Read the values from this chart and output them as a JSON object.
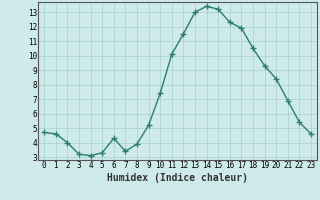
{
  "x": [
    0,
    1,
    2,
    3,
    4,
    5,
    6,
    7,
    8,
    9,
    10,
    11,
    12,
    13,
    14,
    15,
    16,
    17,
    18,
    19,
    20,
    21,
    22,
    23
  ],
  "y": [
    4.7,
    4.6,
    4.0,
    3.2,
    3.1,
    3.3,
    4.3,
    3.4,
    3.9,
    5.2,
    7.4,
    10.1,
    11.5,
    13.0,
    13.4,
    13.2,
    12.3,
    11.9,
    10.5,
    9.3,
    8.4,
    6.9,
    5.4,
    4.6
  ],
  "line_color": "#2d7d6e",
  "marker": "+",
  "markersize": 4,
  "linewidth": 1.0,
  "xlabel": "Humidex (Indice chaleur)",
  "xlabel_fontsize": 7,
  "bg_color": "#ceeaea",
  "grid_color": "#a8cece",
  "tick_color": "#333333",
  "xlim": [
    -0.5,
    23.5
  ],
  "ylim": [
    2.8,
    13.7
  ],
  "yticks": [
    3,
    4,
    5,
    6,
    7,
    8,
    9,
    10,
    11,
    12,
    13
  ],
  "xticks": [
    0,
    1,
    2,
    3,
    4,
    5,
    6,
    7,
    8,
    9,
    10,
    11,
    12,
    13,
    14,
    15,
    16,
    17,
    18,
    19,
    20,
    21,
    22,
    23
  ],
  "tick_fontsize": 5.5
}
